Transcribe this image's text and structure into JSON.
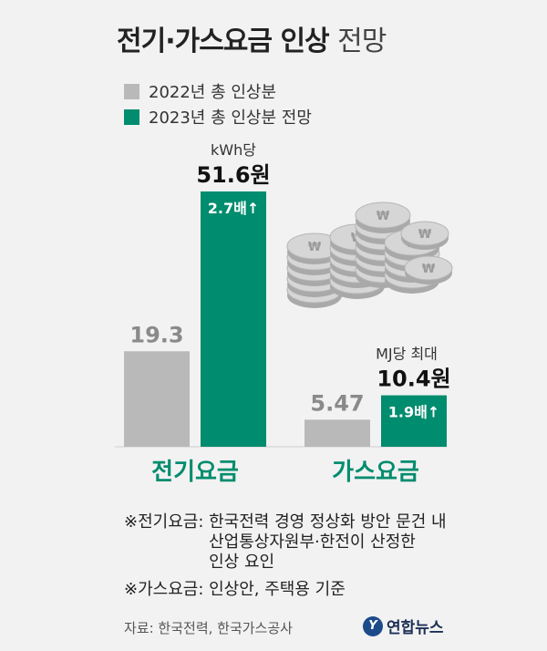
{
  "header": {
    "title_bold": "전기·가스요금 인상",
    "title_light": "전망"
  },
  "colors": {
    "gray": "#b9b9b9",
    "green": "#008c6e",
    "label_green": "#008c6e",
    "coin": "#c9c9c9"
  },
  "chart_data": {
    "type": "bar",
    "title": "전기·가스요금 인상 전망",
    "categories": [
      "전기요금",
      "가스요금"
    ],
    "series": [
      {
        "name": "2022년 총 인상분",
        "values": [
          19.3,
          5.47
        ],
        "labels": [
          "19.3",
          "5.47"
        ]
      },
      {
        "name": "2023년 총 인상분 전망",
        "values": [
          51.6,
          10.4
        ],
        "labels": [
          "51.6원",
          "10.4원"
        ]
      }
    ],
    "units": [
      "kWh당",
      "MJ당 최대"
    ],
    "multipliers": [
      "2.7배↑",
      "1.9배↑"
    ],
    "legend_position": "top-left",
    "grid": false
  },
  "notes": [
    {
      "key": "※전기요금: ",
      "lines": [
        "한국전력 경영 정상화 방안 문건 내",
        "산업통상자원부·한전이 산정한",
        "인상 요인"
      ]
    },
    {
      "key": "※가스요금: ",
      "lines": [
        "인상안, 주택용 기준"
      ]
    }
  ],
  "source": "자료: 한국전력, 한국가스공사",
  "logo": {
    "mark": "Y",
    "text": "연합뉴스"
  }
}
